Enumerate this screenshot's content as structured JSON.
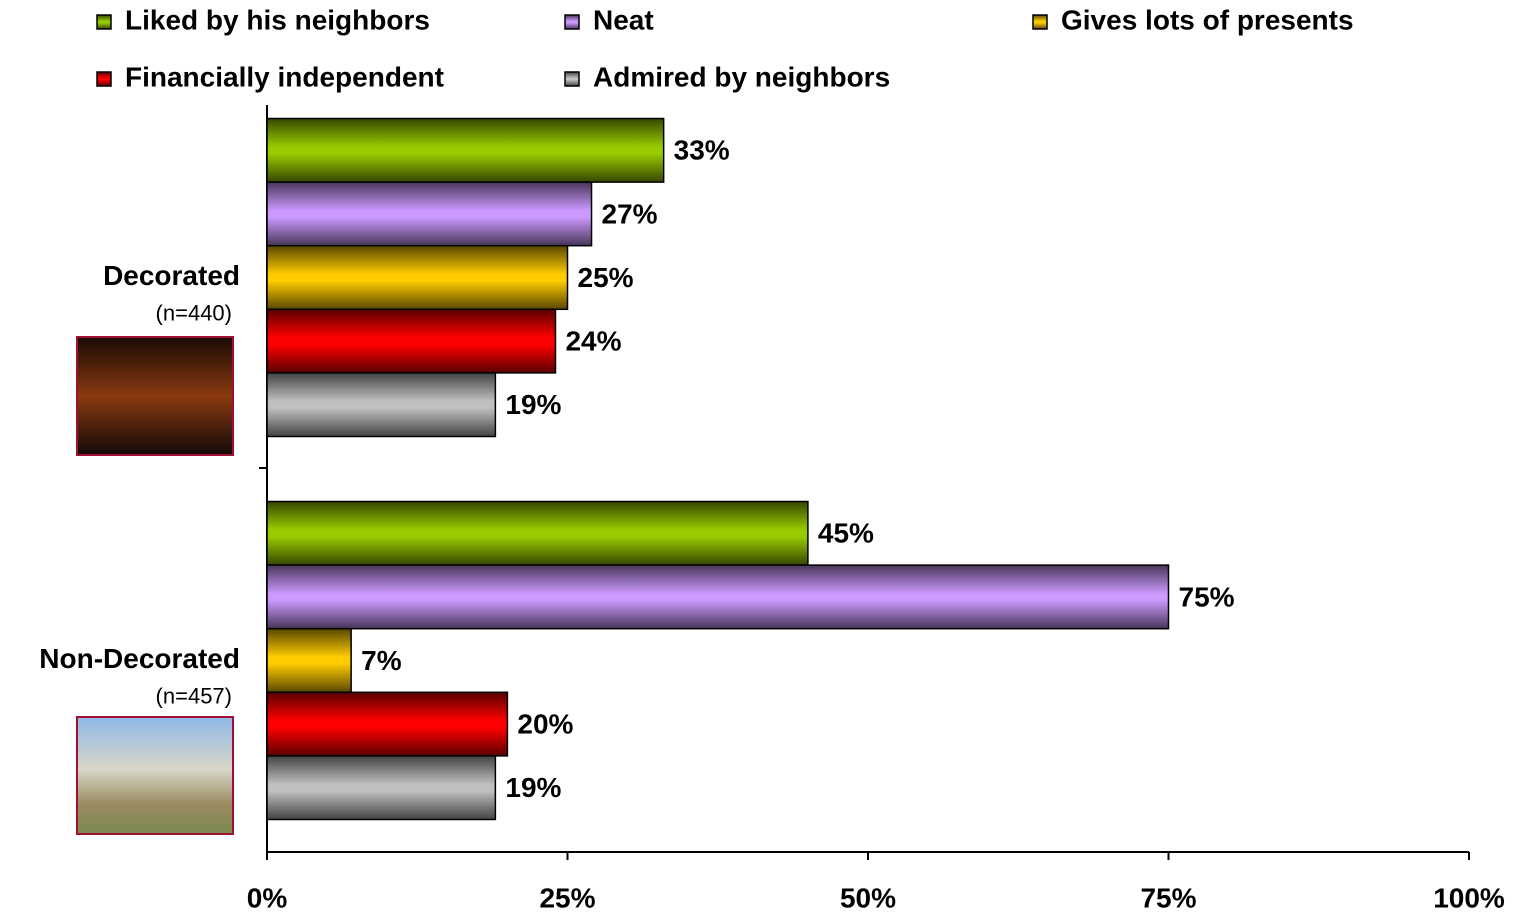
{
  "chart_data": {
    "type": "bar",
    "orientation": "horizontal",
    "categories": [
      "Decorated",
      "Non-Decorated"
    ],
    "category_notes": [
      "(n=440)",
      "(n=457)"
    ],
    "series": [
      {
        "name": "Liked by his neighbors",
        "color": "#99cc00",
        "values": [
          33,
          45
        ],
        "value_labels": [
          "33%",
          "45%"
        ]
      },
      {
        "name": "Neat",
        "color": "#cc99ff",
        "values": [
          27,
          75
        ],
        "value_labels": [
          "27%",
          "75%"
        ]
      },
      {
        "name": "Gives lots of presents",
        "color": "#ffcc00",
        "values": [
          25,
          7
        ],
        "value_labels": [
          "25%",
          "7%"
        ]
      },
      {
        "name": "Financially independent",
        "color": "#ff0000",
        "values": [
          24,
          20
        ],
        "value_labels": [
          "24%",
          "20%"
        ]
      },
      {
        "name": "Admired by neighbors",
        "color": "#c0c0c0",
        "values": [
          19,
          19
        ],
        "value_labels": [
          "19%",
          "19%"
        ]
      }
    ],
    "xlim": [
      0,
      100
    ],
    "xticks": [
      {
        "value": 0,
        "label": "0%"
      },
      {
        "value": 25,
        "label": "25%"
      },
      {
        "value": 50,
        "label": "50%"
      },
      {
        "value": 75,
        "label": "75%"
      },
      {
        "value": 100,
        "label": "100%"
      }
    ],
    "legend": "top"
  }
}
